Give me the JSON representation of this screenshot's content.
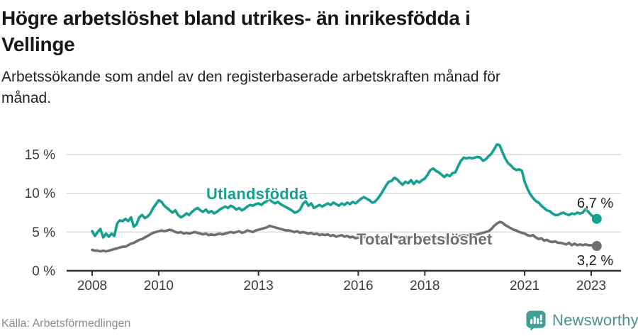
{
  "header": {
    "title": "Högre arbetslöshet bland utrikes- än inrikesfödda i\nVellinge",
    "subtitle": "Arbetssökande som andel av den registerbaserade arbetskraften månad för\nmånad."
  },
  "footer": {
    "source": "Källa: Arbetsförmedlingen",
    "brand": "Newsworthy"
  },
  "colors": {
    "accent_teal": "#13a08f",
    "series_gray": "#6f6f6f",
    "grid": "#dadada",
    "axis": "#2e2e2e",
    "title_text": "#17171b",
    "muted_text": "#8b8b8b",
    "brand_icon": "#3fa098",
    "brand_text": "#4b938d"
  },
  "chart_data": {
    "type": "line",
    "title": "Högre arbetslöshet bland utrikes- än inrikesfödda i Vellinge",
    "subtitle": "Arbetssökande som andel av den registerbaserade arbetskraften månad för månad.",
    "unit": "%",
    "frequency": "monthly",
    "x_start": "2008-01",
    "x_end": "2023-03",
    "x_ticks": [
      2008,
      2010,
      2013,
      2016,
      2018,
      2021,
      2023
    ],
    "y_ticks": [
      {
        "value": 15,
        "label": "15 %"
      },
      {
        "value": 10,
        "label": "10 %"
      },
      {
        "value": 5,
        "label": "5 %"
      },
      {
        "value": 0,
        "label": "0 %"
      }
    ],
    "ylim": [
      0,
      16.5
    ],
    "grid": true,
    "legend_position": "inline-labels",
    "series": [
      {
        "name": "Utlandsfödda",
        "color": "#13a08f",
        "end_label": "6,7 %",
        "end_value": 6.7,
        "values": [
          5.1,
          4.5,
          5.0,
          5.4,
          4.3,
          4.8,
          4.4,
          4.8,
          4.5,
          6.1,
          6.5,
          6.4,
          6.7,
          6.4,
          6.9,
          5.7,
          6.0,
          6.9,
          7.2,
          6.8,
          7.0,
          7.4,
          8.1,
          8.6,
          9.1,
          8.9,
          8.4,
          8.1,
          7.8,
          7.5,
          7.8,
          7.2,
          6.9,
          7.1,
          7.4,
          7.2,
          7.6,
          7.9,
          8.1,
          7.8,
          7.6,
          7.9,
          7.5,
          7.7,
          7.4,
          7.6,
          7.9,
          8.1,
          8.3,
          8.1,
          8.4,
          8.2,
          7.9,
          8.1,
          7.8,
          8.0,
          8.3,
          8.5,
          8.4,
          8.6,
          8.7,
          8.5,
          8.8,
          9.0,
          9.2,
          8.9,
          8.7,
          8.9,
          8.6,
          8.4,
          8.2,
          8.0,
          7.8,
          7.5,
          7.6,
          7.9,
          8.6,
          9.0,
          8.4,
          8.7,
          8.1,
          8.3,
          8.5,
          8.3,
          8.5,
          8.7,
          8.5,
          8.8,
          8.6,
          8.4,
          8.7,
          8.5,
          8.8,
          8.6,
          8.9,
          8.7,
          9.0,
          9.3,
          9.5,
          9.3,
          9.1,
          8.8,
          8.9,
          9.3,
          9.8,
          10.4,
          11.0,
          11.5,
          11.6,
          12.0,
          11.8,
          11.4,
          11.1,
          11.5,
          11.3,
          11.7,
          11.2,
          11.6,
          11.4,
          11.7,
          11.9,
          12.4,
          13.0,
          13.2,
          12.9,
          12.7,
          12.4,
          12.1,
          12.4,
          12.2,
          12.6,
          12.7,
          13.5,
          14.2,
          14.6,
          14.5,
          14.6,
          14.5,
          14.6,
          14.7,
          14.6,
          14.2,
          14.4,
          14.8,
          15.1,
          15.7,
          16.3,
          16.2,
          15.3,
          14.5,
          13.9,
          13.6,
          13.2,
          13.0,
          13.1,
          12.9,
          11.5,
          10.6,
          9.9,
          9.4,
          9.0,
          8.8,
          8.4,
          8.1,
          7.8,
          7.7,
          7.4,
          7.2,
          7.2,
          7.4,
          7.5,
          7.3,
          7.2,
          7.4,
          7.3,
          7.5,
          7.4,
          7.5,
          8.0,
          7.6,
          7.2,
          6.9,
          6.7
        ]
      },
      {
        "name": "Total arbetslöshet",
        "color": "#6f6f6f",
        "end_label": "3,2 %",
        "end_value": 3.2,
        "values": [
          2.7,
          2.6,
          2.6,
          2.5,
          2.6,
          2.5,
          2.6,
          2.7,
          2.8,
          2.9,
          3.0,
          3.1,
          3.1,
          3.3,
          3.5,
          3.6,
          3.8,
          4.0,
          4.1,
          4.3,
          4.5,
          4.7,
          4.9,
          5.0,
          5.1,
          5.2,
          5.1,
          5.2,
          5.3,
          5.2,
          5.0,
          4.9,
          5.0,
          4.8,
          4.9,
          4.8,
          4.9,
          5.0,
          4.9,
          4.8,
          4.7,
          4.8,
          4.6,
          4.7,
          4.6,
          4.7,
          4.8,
          4.7,
          4.8,
          4.9,
          5.0,
          4.9,
          5.0,
          5.1,
          4.9,
          5.0,
          5.2,
          5.1,
          5.0,
          5.2,
          5.3,
          5.4,
          5.5,
          5.6,
          5.8,
          5.7,
          5.6,
          5.5,
          5.4,
          5.3,
          5.2,
          5.2,
          5.1,
          5.0,
          5.1,
          4.9,
          5.0,
          4.9,
          4.8,
          4.9,
          4.7,
          4.8,
          4.6,
          4.7,
          4.6,
          4.7,
          4.5,
          4.6,
          4.4,
          4.5,
          4.6,
          4.4,
          4.5,
          4.3,
          4.4,
          4.2,
          4.3,
          4.2,
          4.4,
          4.2,
          4.3,
          4.1,
          4.2,
          4.3,
          4.2,
          4.4,
          4.3,
          4.4,
          4.5,
          4.4,
          4.3,
          4.4,
          4.2,
          4.3,
          4.4,
          4.3,
          4.4,
          4.3,
          4.2,
          4.3,
          4.2,
          4.3,
          4.4,
          4.3,
          4.2,
          4.3,
          4.1,
          4.2,
          4.3,
          4.2,
          4.3,
          4.4,
          4.4,
          4.5,
          4.6,
          4.5,
          4.6,
          4.7,
          4.6,
          4.7,
          4.8,
          4.9,
          5.0,
          5.1,
          5.4,
          5.8,
          6.1,
          6.3,
          6.2,
          5.9,
          5.7,
          5.5,
          5.3,
          5.2,
          5.0,
          4.9,
          4.8,
          4.6,
          4.5,
          4.6,
          4.3,
          4.1,
          4.2,
          3.9,
          4.0,
          3.8,
          3.7,
          3.8,
          3.6,
          3.6,
          3.5,
          3.4,
          3.6,
          3.3,
          3.5,
          3.3,
          3.4,
          3.3,
          3.4,
          3.3,
          3.3,
          3.2,
          3.2
        ]
      }
    ]
  }
}
